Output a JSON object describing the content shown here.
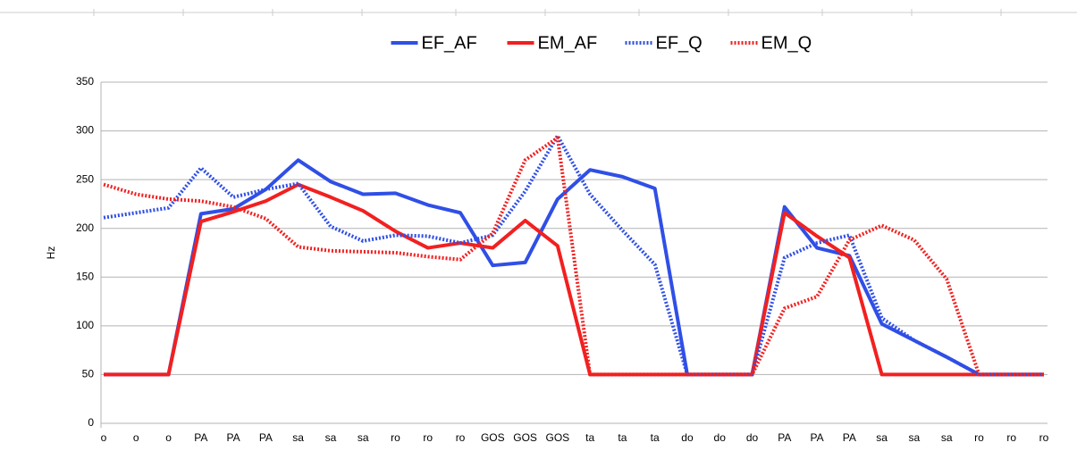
{
  "chart_data": {
    "type": "line",
    "y_label": "Hz",
    "categories": [
      "o",
      "o",
      "o",
      "PA",
      "PA",
      "PA",
      "sa",
      "sa",
      "sa",
      "ro",
      "ro",
      "ro",
      "GOS",
      "GOS",
      "GOS",
      "ta",
      "ta",
      "ta",
      "do",
      "do",
      "do",
      "PA",
      "PA",
      "PA",
      "sa",
      "sa",
      "sa",
      "ro",
      "ro",
      "ro"
    ],
    "series": [
      {
        "name": "EF_AF",
        "color": "#2f4fe6",
        "style": "solid",
        "values": [
          50,
          50,
          50,
          215,
          220,
          240,
          270,
          248,
          235,
          236,
          224,
          216,
          162,
          165,
          230,
          260,
          253,
          241,
          50,
          50,
          50,
          222,
          180,
          172,
          102,
          85,
          68,
          50,
          50,
          50
        ]
      },
      {
        "name": "EM_AF",
        "color": "#f22020",
        "style": "solid",
        "values": [
          50,
          50,
          50,
          207,
          217,
          228,
          245,
          232,
          218,
          197,
          180,
          185,
          180,
          208,
          182,
          50,
          50,
          50,
          50,
          50,
          50,
          216,
          192,
          170,
          50,
          50,
          50,
          50,
          50,
          50
        ]
      },
      {
        "name": "EF_Q",
        "color": "#2f4fe6",
        "style": "dotted",
        "values": [
          211,
          216,
          221,
          262,
          232,
          240,
          246,
          202,
          187,
          193,
          192,
          185,
          193,
          238,
          295,
          235,
          198,
          163,
          50,
          50,
          50,
          170,
          185,
          193,
          108,
          85,
          68,
          50,
          50,
          50
        ]
      },
      {
        "name": "EM_Q",
        "color": "#f22020",
        "style": "dotted",
        "values": [
          245,
          235,
          230,
          228,
          222,
          210,
          181,
          177,
          176,
          175,
          171,
          168,
          195,
          270,
          293,
          50,
          50,
          50,
          50,
          50,
          50,
          118,
          130,
          188,
          203,
          188,
          148,
          50,
          50,
          50
        ]
      }
    ],
    "ylim": [
      0,
      350
    ],
    "yticks": [
      0,
      50,
      100,
      150,
      200,
      250,
      300,
      350
    ],
    "grid": true,
    "legend": "top"
  }
}
